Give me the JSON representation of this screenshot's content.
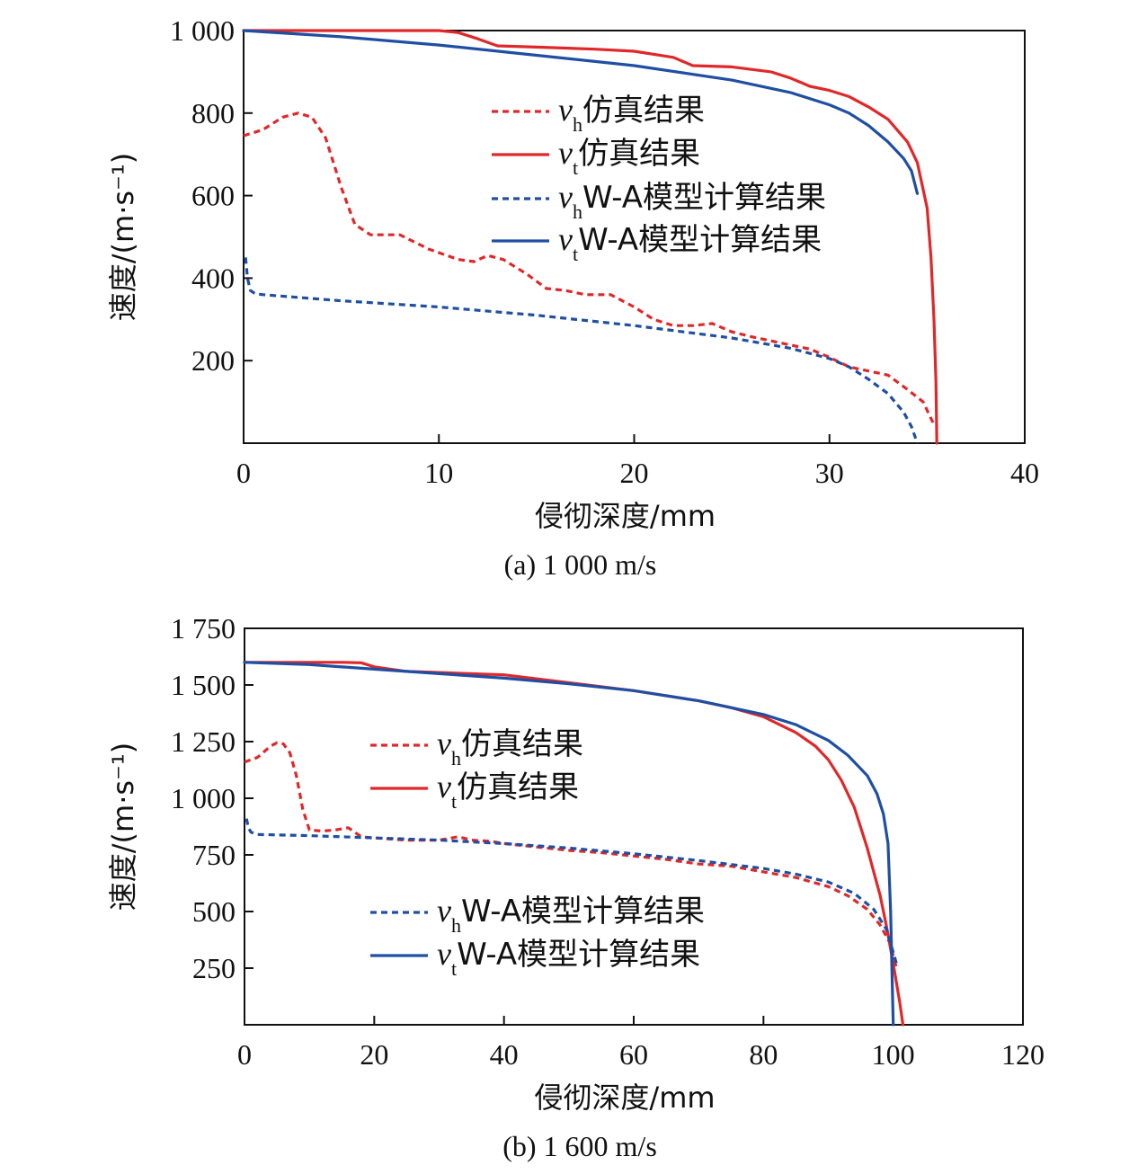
{
  "chart_data": [
    {
      "type": "line",
      "caption": "(a) 1 000 m/s",
      "xlabel": "侵彻深度/mm",
      "ylabel": "速度/(m·s⁻¹)",
      "xlim": [
        0,
        40
      ],
      "ylim": [
        0,
        1000
      ],
      "xticks": [
        "0",
        "10",
        "20",
        "30",
        "40"
      ],
      "yticks": [
        {
          "v": 200,
          "label": "200"
        },
        {
          "v": 400,
          "label": "400"
        },
        {
          "v": 600,
          "label": "600"
        },
        {
          "v": 800,
          "label": "800"
        },
        {
          "v": 1000,
          "label": "1 000"
        }
      ],
      "legend_position": "center-right",
      "series": [
        {
          "name": "vh仿真结果",
          "sym": "v",
          "sub": "h",
          "text": "仿真结果",
          "color": "#e0282a",
          "dash": true,
          "x": [
            0,
            1,
            2,
            2.8,
            3.5,
            4.2,
            5,
            5.7,
            6.5,
            8,
            9.5,
            11,
            11.8,
            12.5,
            13.3,
            14.5,
            15.5,
            16.5,
            17.5,
            18.8,
            20,
            21,
            22,
            23,
            24,
            25,
            26,
            27,
            28,
            29,
            30,
            31,
            32,
            33,
            34,
            34.8,
            35.3
          ],
          "y": [
            745,
            760,
            790,
            800,
            790,
            740,
            620,
            530,
            505,
            505,
            470,
            445,
            440,
            455,
            445,
            410,
            375,
            370,
            360,
            360,
            330,
            300,
            285,
            285,
            290,
            270,
            258,
            248,
            238,
            228,
            208,
            185,
            175,
            165,
            130,
            100,
            50
          ]
        },
        {
          "name": "vt仿真结果",
          "sym": "v",
          "sub": "t",
          "text": "仿真结果",
          "color": "#e0282a",
          "dash": false,
          "x": [
            0,
            5,
            10,
            11,
            12,
            13,
            15,
            18,
            20,
            22,
            23,
            25,
            27,
            28,
            29,
            30,
            31,
            32,
            33,
            34,
            34.5,
            35,
            35.2,
            35.35,
            35.45,
            35.5
          ],
          "y": [
            1000,
            1000,
            1000,
            995,
            980,
            963,
            960,
            955,
            950,
            935,
            915,
            912,
            900,
            885,
            865,
            855,
            840,
            815,
            785,
            730,
            680,
            570,
            450,
            300,
            150,
            0
          ]
        },
        {
          "name": "vhW-A模型计算结果",
          "sym": "v",
          "sub": "h",
          "text": "W-A模型计算结果",
          "color": "#1f4fa3",
          "dash": true,
          "x": [
            0.1,
            0.2,
            0.35,
            0.6,
            1,
            5,
            10,
            15,
            20,
            25,
            28,
            30,
            31,
            32,
            33,
            33.8,
            34.2,
            34.5
          ],
          "y": [
            450,
            400,
            370,
            362,
            360,
            345,
            330,
            310,
            285,
            255,
            230,
            205,
            185,
            155,
            120,
            75,
            40,
            0
          ]
        },
        {
          "name": "vtW-A模型计算结果",
          "sym": "v",
          "sub": "t",
          "text": "W-A模型计算结果",
          "color": "#1f4fa3",
          "dash": false,
          "x": [
            0,
            5,
            10,
            15,
            20,
            25,
            28,
            30,
            31,
            32,
            33,
            33.8,
            34.2,
            34.5
          ],
          "y": [
            1000,
            985,
            965,
            940,
            915,
            880,
            850,
            820,
            800,
            770,
            730,
            690,
            660,
            605
          ]
        }
      ]
    },
    {
      "type": "line",
      "caption": "(b) 1 600 m/s",
      "xlabel": "侵彻深度/mm",
      "ylabel": "速度/(m·s⁻¹)",
      "xlim": [
        0,
        120
      ],
      "ylim": [
        0,
        1750
      ],
      "xticks": [
        "0",
        "20",
        "40",
        "60",
        "80",
        "100",
        "120"
      ],
      "yticks": [
        {
          "v": 250,
          "label": "250"
        },
        {
          "v": 500,
          "label": "500"
        },
        {
          "v": 750,
          "label": "750"
        },
        {
          "v": 1000,
          "label": "1 000"
        },
        {
          "v": 1250,
          "label": "1 250"
        },
        {
          "v": 1500,
          "label": "1 500"
        },
        {
          "v": 1750,
          "label": "1 750"
        }
      ],
      "legend_position": "left",
      "series": [
        {
          "name": "vh仿真结果",
          "sym": "v",
          "sub": "h",
          "text": "仿真结果",
          "color": "#e0282a",
          "dash": true,
          "x": [
            0,
            2,
            4,
            5,
            6,
            7,
            8,
            9,
            10,
            12,
            14,
            16,
            18,
            20,
            25,
            30,
            33,
            35,
            38,
            40,
            45,
            50,
            55,
            60,
            65,
            70,
            75,
            80,
            85,
            90,
            93,
            96,
            98,
            99.5,
            100.5
          ],
          "y": [
            1160,
            1180,
            1230,
            1245,
            1240,
            1200,
            1100,
            950,
            860,
            855,
            860,
            870,
            830,
            825,
            815,
            815,
            830,
            815,
            810,
            800,
            785,
            770,
            760,
            745,
            730,
            710,
            700,
            675,
            650,
            610,
            570,
            510,
            440,
            360,
            250
          ]
        },
        {
          "name": "vt仿真结果",
          "sym": "v",
          "sub": "t",
          "text": "仿真结果",
          "color": "#e0282a",
          "dash": false,
          "x": [
            0,
            10,
            15,
            18,
            20,
            25,
            30,
            40,
            50,
            60,
            70,
            75,
            80,
            85,
            88,
            90,
            92,
            94,
            96,
            98,
            99,
            100,
            101,
            101.5
          ],
          "y": [
            1600,
            1600,
            1600,
            1598,
            1580,
            1560,
            1555,
            1545,
            1510,
            1475,
            1430,
            1400,
            1360,
            1290,
            1230,
            1170,
            1080,
            960,
            780,
            570,
            430,
            270,
            100,
            0
          ]
        },
        {
          "name": "vhW-A模型计算结果",
          "sym": "v",
          "sub": "h",
          "text": "W-A模型计算结果",
          "color": "#1f4fa3",
          "dash": true,
          "x": [
            0.3,
            0.6,
            1,
            2,
            5,
            10,
            20,
            30,
            40,
            50,
            60,
            70,
            80,
            85,
            90,
            94,
            97,
            99,
            100.5
          ],
          "y": [
            910,
            870,
            850,
            840,
            838,
            835,
            825,
            815,
            800,
            780,
            755,
            725,
            690,
            665,
            630,
            580,
            510,
            420,
            270
          ]
        },
        {
          "name": "vtW-A模型计算结果",
          "sym": "v",
          "sub": "t",
          "text": "W-A模型计算结果",
          "color": "#1f4fa3",
          "dash": false,
          "x": [
            0,
            10,
            20,
            30,
            40,
            50,
            60,
            70,
            80,
            85,
            90,
            93,
            96,
            97.5,
            98.5,
            99.2,
            99.6,
            99.8,
            100
          ],
          "y": [
            1600,
            1590,
            1570,
            1550,
            1530,
            1505,
            1475,
            1430,
            1370,
            1325,
            1255,
            1190,
            1100,
            1020,
            930,
            800,
            500,
            250,
            0
          ]
        }
      ]
    }
  ]
}
